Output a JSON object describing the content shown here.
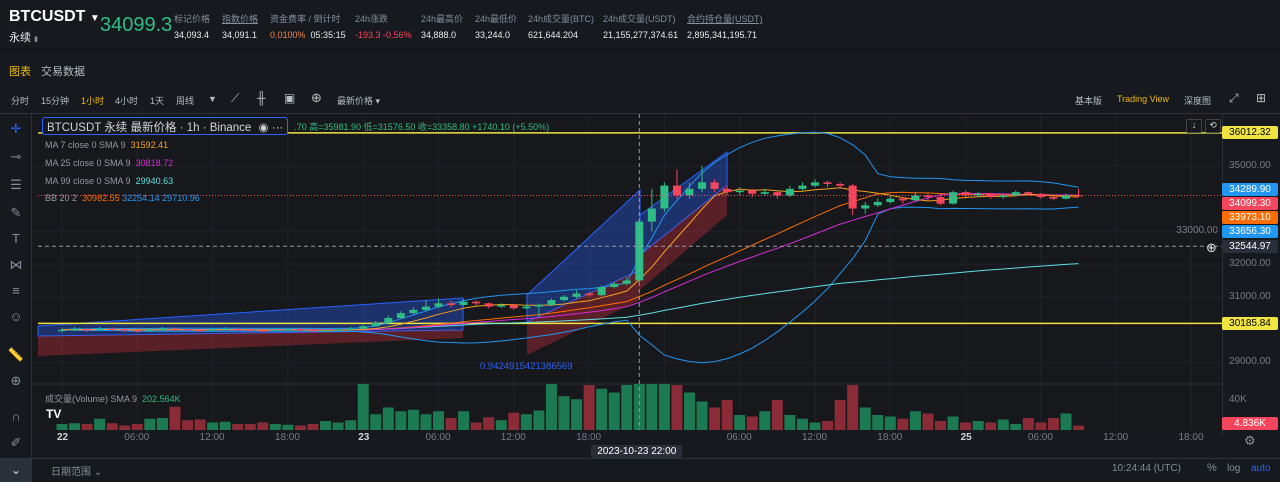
{
  "header": {
    "symbol": "BTCUSDT",
    "contract_type": "永续",
    "last_price": "34099.3",
    "stats": [
      {
        "label": "标记价格",
        "value": "34,093.4"
      },
      {
        "label": "指数价格",
        "value": "34,091.1"
      },
      {
        "label": "资金费率 / 倒计时",
        "value": "0.0100%",
        "value2": "05:35:15"
      },
      {
        "label": "24h涨跌",
        "value": "-193.3 -0.56%"
      },
      {
        "label": "24h最高价",
        "value": "34,888.0"
      },
      {
        "label": "24h最低价",
        "value": "33,244.0"
      },
      {
        "label": "24h成交量(BTC)",
        "value": "621,644.204"
      },
      {
        "label": "24h成交量(USDT)",
        "value": "21,155,277,374.61"
      },
      {
        "label": "合约持仓量(USDT)",
        "value": "2,895,341,195.71"
      }
    ]
  },
  "tabs": [
    "图表",
    "交易数据"
  ],
  "toolbar": {
    "intervals": [
      "分时",
      "15分钟",
      "1小时",
      "4小时",
      "1天",
      "周线"
    ],
    "active_interval": "1小时",
    "price_type": "最新价格",
    "views": [
      "基本版",
      "Trading View",
      "深度图"
    ],
    "active_view": "Trading View"
  },
  "legend": {
    "title": "BTCUSDT 永续 最新价格 · 1h · Binance",
    "ohlc": ".70 高=35981.90 低=31576.50 收=33358.80 +1740.10 (+5.50%)",
    "ma7": {
      "label": "MA 7 close 0 SMA 9",
      "value": "31592.41",
      "color": "#f7a21b"
    },
    "ma25": {
      "label": "MA 25 close 0 SMA 9",
      "value": "30818.72",
      "color": "#d62cd6"
    },
    "ma99": {
      "label": "MA 99 close 0 SMA 9",
      "value": "29940.63",
      "color": "#5fe0e0"
    },
    "bb": {
      "label": "BB 20 2",
      "basis": "30982.55",
      "upper": "32254.14",
      "lower": "29710.96",
      "basis_color": "#ff6d00",
      "band_color": "#2196f3"
    },
    "volume": {
      "label": "成交量(Volume) SMA 9",
      "value": "202.564K"
    }
  },
  "drawing_label": "0.9424915421386569",
  "price_axis": {
    "ticks": [
      "35000.00",
      "33000.00",
      "32000.00",
      "31000.00",
      "29000.00"
    ],
    "tick_values": [
      35000,
      33000,
      32000,
      31000,
      29000
    ],
    "volume_tick": "40K",
    "tags": [
      {
        "text": "36012.32",
        "value": 36012.32,
        "bg": "#f0e442",
        "fg": "#000"
      },
      {
        "text": "34289.90",
        "value": 34289.9,
        "bg": "#2196f3",
        "fg": "#fff"
      },
      {
        "text": "34099.30",
        "value": 34099.3,
        "bg": "#f6465d",
        "fg": "#fff"
      },
      {
        "text": "33973.10",
        "value": 33973.1,
        "bg": "#ff6d00",
        "fg": "#fff"
      },
      {
        "text": "33656.30",
        "value": 33656.3,
        "bg": "#2196f3",
        "fg": "#fff"
      },
      {
        "text": "32544.97",
        "value": 32544.97,
        "bg": "#2a2e39",
        "fg": "#fff"
      },
      {
        "text": "30185.84",
        "value": 30185.84,
        "bg": "#f0e442",
        "fg": "#000"
      }
    ],
    "volume_tag": "4.836K"
  },
  "horizontal_lines": [
    36012.32,
    30185.84
  ],
  "crosshair": {
    "price": 32544.97,
    "time_label": "2023-10-23  22:00"
  },
  "time_axis": [
    {
      "t": "22",
      "h": 0,
      "bold": true
    },
    {
      "t": "06:00",
      "h": 6
    },
    {
      "t": "12:00",
      "h": 12
    },
    {
      "t": "18:00",
      "h": 18
    },
    {
      "t": "23",
      "h": 24,
      "bold": true
    },
    {
      "t": "06:00",
      "h": 30
    },
    {
      "t": "12:00",
      "h": 36
    },
    {
      "t": "18:00",
      "h": 42
    },
    {
      "t": "06:00",
      "h": 54
    },
    {
      "t": "12:00",
      "h": 60
    },
    {
      "t": "18:00",
      "h": 66
    },
    {
      "t": "25",
      "h": 72,
      "bold": true
    },
    {
      "t": "06:00",
      "h": 78
    },
    {
      "t": "12:00",
      "h": 84
    },
    {
      "t": "18:00",
      "h": 90
    }
  ],
  "bottom": {
    "date_range": "日期范围",
    "clock": "10:24:44 (UTC)",
    "percent": "%",
    "log": "log",
    "auto": "auto"
  },
  "colors": {
    "up": "#2ebd85",
    "down": "#f6465d",
    "vol_up": "#1b7a52",
    "vol_down": "#8a2b37",
    "accent": "#f0b90b"
  },
  "candles": [
    [
      29950,
      30060,
      29900,
      29990
    ],
    [
      29990,
      30080,
      29950,
      30010
    ],
    [
      30010,
      30050,
      29930,
      29980
    ],
    [
      29980,
      30090,
      29960,
      30020
    ],
    [
      30020,
      30060,
      29960,
      30000
    ],
    [
      30000,
      30030,
      29920,
      29970
    ],
    [
      29970,
      30000,
      29900,
      29950
    ],
    [
      29950,
      30040,
      29920,
      29990
    ],
    [
      29990,
      30080,
      29970,
      30030
    ],
    [
      30030,
      30060,
      29960,
      30000
    ],
    [
      30000,
      30030,
      29940,
      29980
    ],
    [
      29980,
      30010,
      29920,
      29960
    ],
    [
      29960,
      30050,
      29940,
      30000
    ],
    [
      30000,
      30070,
      29980,
      30020
    ],
    [
      30020,
      30040,
      29960,
      29990
    ],
    [
      29990,
      30010,
      29940,
      29970
    ],
    [
      29970,
      30000,
      29920,
      29960
    ],
    [
      29960,
      30030,
      29940,
      29990
    ],
    [
      29990,
      30060,
      29970,
      30010
    ],
    [
      30010,
      30030,
      29950,
      29980
    ],
    [
      29980,
      30000,
      29910,
      29950
    ],
    [
      29950,
      30010,
      29930,
      29970
    ],
    [
      29970,
      30040,
      29950,
      30000
    ],
    [
      30000,
      30080,
      29980,
      30020
    ],
    [
      30020,
      30150,
      30000,
      30100
    ],
    [
      30100,
      30260,
      30080,
      30200
    ],
    [
      30200,
      30420,
      30180,
      30350
    ],
    [
      30350,
      30560,
      30320,
      30500
    ],
    [
      30500,
      30680,
      30460,
      30600
    ],
    [
      30600,
      30900,
      30560,
      30700
    ],
    [
      30700,
      30950,
      30650,
      30800
    ],
    [
      30800,
      30880,
      30680,
      30750
    ],
    [
      30750,
      30920,
      30720,
      30850
    ],
    [
      30850,
      30900,
      30740,
      30800
    ],
    [
      30800,
      30830,
      30650,
      30700
    ],
    [
      30700,
      30800,
      30660,
      30750
    ],
    [
      30750,
      30780,
      30600,
      30650
    ],
    [
      30650,
      30760,
      30620,
      30700
    ],
    [
      30700,
      30800,
      30400,
      30750
    ],
    [
      30750,
      30950,
      30720,
      30900
    ],
    [
      30900,
      31050,
      30860,
      31000
    ],
    [
      31000,
      31200,
      30950,
      31100
    ],
    [
      31100,
      31150,
      31000,
      31050
    ],
    [
      31050,
      31350,
      31020,
      31300
    ],
    [
      31300,
      31450,
      31250,
      31400
    ],
    [
      31400,
      31600,
      31350,
      31500
    ],
    [
      31500,
      33400,
      31450,
      33300
    ],
    [
      33300,
      34300,
      33000,
      33700
    ],
    [
      33700,
      34500,
      33600,
      34400
    ],
    [
      34400,
      34900,
      34000,
      34100
    ],
    [
      34100,
      34500,
      34000,
      34300
    ],
    [
      34300,
      35000,
      34200,
      34500
    ],
    [
      34500,
      34600,
      34200,
      34300
    ],
    [
      34300,
      34400,
      34100,
      34200
    ],
    [
      34200,
      34350,
      34100,
      34250
    ],
    [
      34250,
      34300,
      34050,
      34150
    ],
    [
      34150,
      34300,
      34100,
      34200
    ],
    [
      34200,
      34250,
      34000,
      34100
    ],
    [
      34100,
      34400,
      34050,
      34300
    ],
    [
      34300,
      34500,
      34250,
      34400
    ],
    [
      34400,
      34600,
      34350,
      34500
    ],
    [
      34500,
      34550,
      34350,
      34450
    ],
    [
      34450,
      34500,
      34300,
      34400
    ],
    [
      34400,
      34450,
      33500,
      33700
    ],
    [
      33700,
      33900,
      33550,
      33800
    ],
    [
      33800,
      34000,
      33750,
      33900
    ],
    [
      33900,
      34100,
      33850,
      34000
    ],
    [
      34000,
      34050,
      33850,
      33950
    ],
    [
      33950,
      34200,
      33900,
      34100
    ],
    [
      34100,
      34150,
      33950,
      34050
    ],
    [
      34050,
      34100,
      33800,
      33850
    ],
    [
      33850,
      34250,
      33820,
      34200
    ],
    [
      34200,
      34250,
      34050,
      34100
    ],
    [
      34100,
      34200,
      34050,
      34150
    ],
    [
      34150,
      34180,
      34000,
      34050
    ],
    [
      34050,
      34150,
      34000,
      34100
    ],
    [
      34100,
      34250,
      34080,
      34200
    ],
    [
      34200,
      34220,
      34100,
      34150
    ],
    [
      34150,
      34170,
      34000,
      34050
    ],
    [
      34050,
      34100,
      33950,
      34000
    ],
    [
      34000,
      34150,
      33980,
      34100
    ],
    [
      34100,
      34300,
      34050,
      34099.3
    ]
  ],
  "volumes": [
    8,
    9,
    8,
    15,
    9,
    6,
    8,
    15,
    16,
    31,
    13,
    14,
    10,
    11,
    8,
    8,
    10,
    8,
    7,
    6,
    8,
    12,
    10,
    13,
    70,
    21,
    30,
    25,
    27,
    21,
    25,
    16,
    25,
    10,
    17,
    13,
    23,
    21,
    26,
    62,
    45,
    41,
    60,
    55,
    50,
    60,
    70,
    65,
    66,
    60,
    50,
    38,
    30,
    40,
    20,
    18,
    25,
    40,
    20,
    15,
    10,
    12,
    40,
    60,
    30,
    20,
    18,
    15,
    25,
    22,
    12,
    18,
    10,
    12,
    10,
    14,
    8,
    16,
    10,
    16,
    22,
    6
  ]
}
